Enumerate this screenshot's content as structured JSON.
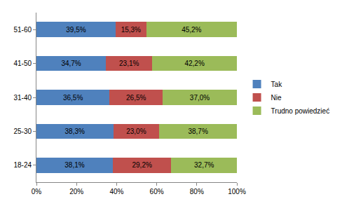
{
  "chart_data": {
    "type": "bar",
    "orientation": "horizontal",
    "stacked": true,
    "data_labels": true,
    "grid": false,
    "legend": "right",
    "categories": [
      "18-24",
      "25-30",
      "31-40",
      "41-50",
      "51-60"
    ],
    "series": [
      {
        "name": "Tak",
        "color": "#4f81bd",
        "values": [
          38.1,
          38.3,
          36.5,
          34.7,
          39.5
        ],
        "value_labels": [
          "38,1%",
          "38,3%",
          "36,5%",
          "34,7%",
          "39,5%"
        ]
      },
      {
        "name": "Nie",
        "color": "#c0504d",
        "values": [
          29.2,
          23.0,
          26.5,
          23.1,
          15.3
        ],
        "value_labels": [
          "29,2%",
          "23,0%",
          "26,5%",
          "23,1%",
          "15,3%"
        ]
      },
      {
        "name": "Trudno powiedzieć",
        "color": "#9bbb59",
        "values": [
          32.7,
          38.7,
          37.0,
          42.2,
          45.2
        ],
        "value_labels": [
          "32,7%",
          "38,7%",
          "37,0%",
          "42,2%",
          "45,2%"
        ]
      }
    ],
    "xlim": [
      0,
      100
    ],
    "xticks": [
      {
        "value": 0,
        "label": "0%"
      },
      {
        "value": 20,
        "label": "20%"
      },
      {
        "value": 40,
        "label": "40%"
      },
      {
        "value": 60,
        "label": "60%"
      },
      {
        "value": 80,
        "label": "80%"
      },
      {
        "value": 100,
        "label": "100%"
      }
    ]
  }
}
